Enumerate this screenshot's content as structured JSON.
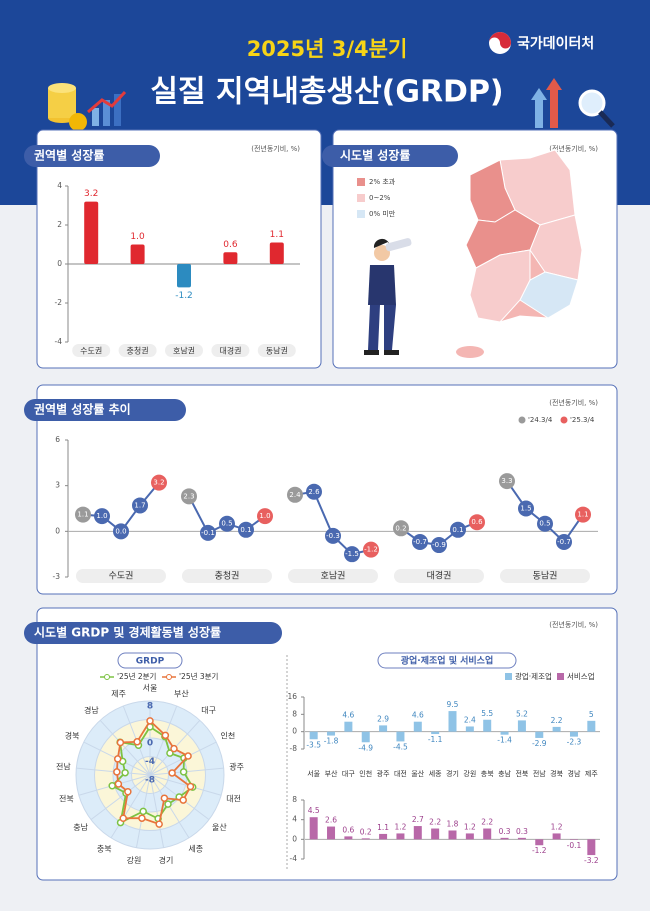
{
  "header": {
    "period": "2025년 3/4분기",
    "title": "실질 지역내총생산(GRDP)",
    "logo": "국가데이터처"
  },
  "chart_data": [
    {
      "type": "bar",
      "title": "권역별 성장률",
      "unit": "(전년동기비, %)",
      "categories": [
        "수도권",
        "충청권",
        "호남권",
        "대경권",
        "동남권"
      ],
      "values": [
        3.2,
        1.0,
        -1.2,
        0.6,
        1.1
      ],
      "value_labels": [
        "3.2",
        "1.0",
        "-1.2",
        "0.6",
        "1.1"
      ],
      "colors": [
        "#e0282f",
        "#e0282f",
        "#2c8bc0",
        "#e0282f",
        "#e0282f"
      ],
      "ylim": [
        -4,
        4
      ],
      "yticks": [
        -4,
        -2,
        0,
        2,
        4
      ]
    },
    {
      "type": "map",
      "title": "시도별 성장률",
      "unit": "(전년동기비, %)",
      "legend": [
        {
          "label": "2% 초과",
          "color": "#e9908c"
        },
        {
          "label": "0~2%",
          "color": "#f7cccc"
        },
        {
          "label": "0% 미만",
          "color": "#d6e7f5"
        }
      ]
    },
    {
      "type": "line",
      "title": "권역별 성장률 추이",
      "unit": "(전년동기비, %)",
      "legend": [
        {
          "label": "'24.3/4",
          "color": "#9a9a9a"
        },
        {
          "label": "'25.3/4",
          "color": "#e8605f"
        }
      ],
      "color": "#4a69b0",
      "categories": [
        "수도권",
        "충청권",
        "호남권",
        "대경권",
        "동남권"
      ],
      "series": [
        {
          "values": [
            1.1,
            1.0,
            0.0,
            1.7,
            3.2
          ],
          "value_labels": [
            "1.1",
            "1.0",
            "0.0",
            "1.7",
            "3.2"
          ]
        },
        {
          "values": [
            2.3,
            -0.1,
            0.5,
            0.1,
            1.0
          ],
          "value_labels": [
            "2.3",
            "-0.1",
            "0.5",
            "0.1",
            "1.0"
          ]
        },
        {
          "values": [
            2.4,
            2.6,
            -0.3,
            -1.5,
            -1.2
          ],
          "value_labels": [
            "2.4",
            "2.6",
            "-0.3",
            "-1.5",
            "-1.2"
          ]
        },
        {
          "values": [
            0.2,
            -0.7,
            -0.9,
            0.1,
            0.6
          ],
          "value_labels": [
            "0.2",
            "-0.7",
            "-0.9",
            "0.1",
            "0.6"
          ]
        },
        {
          "values": [
            3.3,
            1.5,
            0.5,
            -0.7,
            1.1
          ],
          "value_labels": [
            "3.3",
            "1.5",
            "0.5",
            "-0.7",
            "1.1"
          ]
        }
      ],
      "ylim": [
        -3,
        6
      ],
      "yticks": [
        -3,
        0,
        3,
        6
      ]
    },
    {
      "type": "radar",
      "section_title": "시도별 GRDP 및 경제활동별 성장률",
      "title": "GRDP",
      "unit": "(전년동기비, %)",
      "categories": [
        "서울",
        "부산",
        "대구",
        "인천",
        "광주",
        "대전",
        "울산",
        "세종",
        "경기",
        "강원",
        "충북",
        "충남",
        "전북",
        "전남",
        "경북",
        "경남",
        "제주"
      ],
      "series": [
        {
          "name": "'25년 2분기",
          "color": "#7cc242",
          "values": [
            2.4,
            0.9,
            -1.6,
            0.2,
            -0.7,
            1.6,
            -0.1,
            -0.6,
            1.6,
            0.0,
            4.1,
            -1.5,
            0.5,
            -2.6,
            -1.4,
            1.6,
            -1.1
          ]
        },
        {
          "name": "'25년 3분기",
          "color": "#e8743b",
          "values": [
            3.7,
            1.2,
            -0.3,
            1.2,
            -3.2,
            1.1,
            1.0,
            -2.1,
            2.8,
            1.5,
            3.0,
            -2.0,
            -0.9,
            -0.8,
            -0.2,
            1.5,
            -0.3
          ]
        }
      ],
      "rlim": [
        -8,
        8
      ],
      "rticks": [
        8,
        4,
        0,
        -4,
        -8
      ]
    },
    {
      "type": "bar-panels",
      "title": "광업·제조업 및 서비스업",
      "categories": [
        "서울",
        "부산",
        "대구",
        "인천",
        "광주",
        "대전",
        "울산",
        "세종",
        "경기",
        "강원",
        "충북",
        "충남",
        "전북",
        "전남",
        "경북",
        "경남",
        "제주"
      ],
      "series": [
        {
          "name": "광업·제조업",
          "color": "#8fc3e6",
          "label_color": "#3f86bf",
          "values": [
            -3.5,
            -1.8,
            4.6,
            -4.9,
            2.9,
            -4.5,
            4.6,
            -1.1,
            9.5,
            2.4,
            5.5,
            -1.4,
            5.2,
            -2.9,
            2.2,
            -2.3,
            5.0
          ],
          "ylim": [
            -8,
            16
          ],
          "yticks": [
            -8,
            0,
            8,
            16
          ]
        },
        {
          "name": "서비스업",
          "color": "#b868a8",
          "label_color": "#9c3f8c",
          "values": [
            4.5,
            2.6,
            0.6,
            0.2,
            1.1,
            1.2,
            2.7,
            2.2,
            1.8,
            1.2,
            2.2,
            0.3,
            0.3,
            -1.2,
            1.2,
            -0.1,
            -3.2
          ],
          "ylim": [
            -4,
            8
          ],
          "yticks": [
            -4,
            0,
            4,
            8
          ]
        }
      ]
    }
  ]
}
